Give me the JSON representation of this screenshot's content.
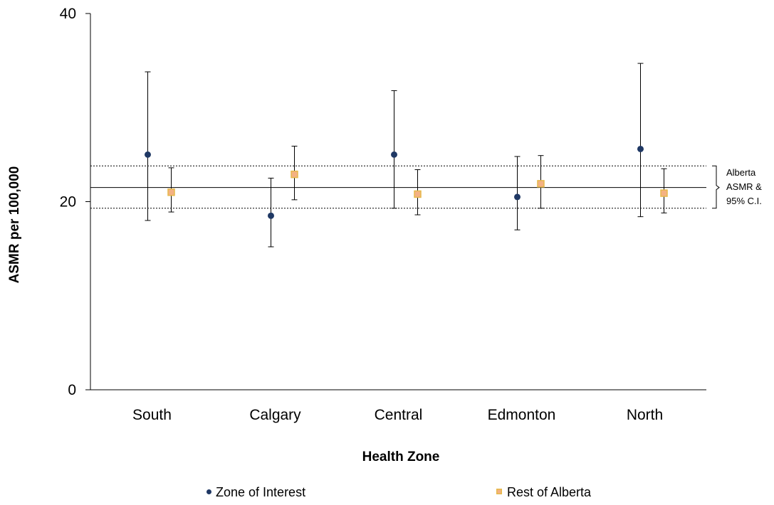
{
  "chart_data": {
    "type": "scatter",
    "subtype": "point-estimates-with-95pct-error-bars",
    "title": "",
    "xlabel": "Health Zone",
    "ylabel": "ASMR per 100,000",
    "categories": [
      "South",
      "Calgary",
      "Central",
      "Edmonton",
      "North"
    ],
    "ylim": [
      0,
      40
    ],
    "yticks": [
      0,
      20,
      40
    ],
    "grid": false,
    "legend_position": "bottom",
    "series": [
      {
        "name": "Zone of Interest",
        "marker": "circle",
        "color": "#1f3864",
        "values": [
          25.0,
          18.5,
          25.0,
          20.5,
          25.6
        ],
        "lower": [
          18.0,
          15.2,
          19.3,
          17.0,
          18.4
        ],
        "upper": [
          33.8,
          22.5,
          31.8,
          24.8,
          34.7
        ]
      },
      {
        "name": "Rest of Alberta",
        "marker": "square",
        "color": "#f4b183",
        "border_color": "#e6b94a",
        "values": [
          21.0,
          22.9,
          20.8,
          21.9,
          20.9
        ],
        "lower": [
          18.9,
          20.2,
          18.6,
          19.3,
          18.8
        ],
        "upper": [
          23.6,
          25.9,
          23.4,
          24.9,
          23.5
        ]
      }
    ],
    "reference": {
      "label_lines": [
        "Alberta",
        "ASMR &",
        "95% C.I."
      ],
      "value": 21.5,
      "lower": 19.3,
      "upper": 23.8
    }
  }
}
